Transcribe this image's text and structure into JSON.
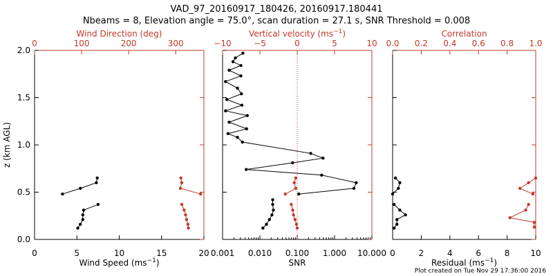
{
  "figure": {
    "title_line1": "VAD_97_20160917_180426, 20160917.180441",
    "title_line2": "Nbeams = 8, Elevation angle = 75.0°, scan duration = 27.1 s, SNR Threshold = 0.008",
    "footer": "Plot created on Tue Nov 29 17:36:00 2016",
    "colors": {
      "primary": "#000000",
      "secondary": "#c0392b"
    }
  },
  "chart_data": [
    {
      "type": "line",
      "name": "wind",
      "ylabel": "z (km AGL)",
      "ylim": [
        0,
        2.0
      ],
      "yticks": [
        0.0,
        0.5,
        1.0,
        1.5,
        2.0
      ],
      "ytick_labels": [
        "0.0",
        "0.5",
        "1.0",
        "1.5",
        "2.0"
      ],
      "bottom_axis": {
        "label": "Wind Speed (ms",
        "label_sup": "−1",
        "label_end": ")",
        "range": [
          0,
          20
        ],
        "ticks": [
          0,
          5,
          10,
          15,
          20
        ],
        "tick_labels": [
          "0",
          "5",
          "10",
          "15",
          "20"
        ]
      },
      "top_axis": {
        "label": "Wind Direction (deg)",
        "range": [
          0,
          360
        ],
        "ticks": [
          0,
          100,
          200,
          300
        ],
        "tick_labels": [
          "0",
          "100",
          "200",
          "300"
        ]
      },
      "series": [
        {
          "name": "Wind Speed",
          "axis": "bottom",
          "color": "#000000",
          "segments": [
            [
              [
                7.4,
                0.65
              ],
              [
                7.3,
                0.6
              ],
              [
                5.4,
                0.54
              ],
              [
                3.3,
                0.48
              ]
            ],
            [
              [
                7.5,
                0.37
              ],
              [
                5.8,
                0.31
              ],
              [
                5.7,
                0.26
              ],
              [
                5.7,
                0.21
              ],
              [
                5.4,
                0.16
              ],
              [
                5.1,
                0.12
              ]
            ]
          ]
        },
        {
          "name": "Wind Direction",
          "axis": "top",
          "color": "#c0392b",
          "segments": [
            [
              [
                311,
                0.65
              ],
              [
                313,
                0.6
              ],
              [
                310,
                0.54
              ],
              [
                353,
                0.48
              ]
            ],
            [
              [
                313,
                0.37
              ],
              [
                318,
                0.31
              ],
              [
                321,
                0.26
              ],
              [
                323,
                0.21
              ],
              [
                326,
                0.16
              ],
              [
                327,
                0.12
              ]
            ]
          ]
        }
      ]
    },
    {
      "type": "line",
      "name": "snr-vv",
      "ylim": [
        0,
        2.0
      ],
      "bottom_axis": {
        "label": "SNR",
        "scale": "log",
        "range": [
          0.001,
          10
        ],
        "ticks": [
          0.001,
          0.01,
          0.1,
          1,
          10
        ],
        "tick_labels": [
          "0.001",
          "0.010",
          "0.100",
          "1.000",
          "10.000"
        ]
      },
      "top_axis": {
        "label": "Vertical velocity (ms",
        "label_sup": "−1",
        "label_end": ")",
        "range": [
          -10,
          10
        ],
        "ticks": [
          -10,
          -5,
          0,
          5,
          10
        ],
        "tick_labels": [
          "−10",
          "−5",
          "0",
          "5",
          "10"
        ]
      },
      "reference_line": {
        "axis": "top",
        "value": 0,
        "style": "dotted"
      },
      "series": [
        {
          "name": "SNR",
          "axis": "bottom",
          "color": "#000000",
          "segments": [
            [
              [
                0.0035,
                1.97
              ],
              [
                0.0022,
                1.92
              ],
              [
                0.0019,
                1.88
              ],
              [
                0.0031,
                1.84
              ],
              [
                0.0015,
                1.79
              ],
              [
                0.0031,
                1.73
              ],
              [
                0.0012,
                1.67
              ],
              [
                0.0025,
                1.6
              ],
              [
                0.0032,
                1.54
              ],
              [
                0.0013,
                1.48
              ],
              [
                0.0033,
                1.42
              ],
              [
                0.0012,
                1.36
              ],
              [
                0.0046,
                1.31
              ],
              [
                0.0015,
                1.24
              ],
              [
                0.0044,
                1.17
              ],
              [
                0.0014,
                1.12
              ],
              [
                0.0025,
                1.08
              ],
              [
                0.0034,
                1.03
              ],
              [
                0.23,
                0.91
              ],
              [
                0.49,
                0.86
              ],
              [
                0.075,
                0.81
              ],
              [
                0.0043,
                0.74
              ],
              [
                0.45,
                0.68
              ],
              [
                3.8,
                0.6
              ],
              [
                3.3,
                0.54
              ],
              [
                0.11,
                0.48
              ]
            ],
            [
              [
                0.022,
                0.42
              ],
              [
                0.022,
                0.37
              ],
              [
                0.023,
                0.31
              ],
              [
                0.021,
                0.26
              ],
              [
                0.018,
                0.21
              ],
              [
                0.015,
                0.16
              ],
              [
                0.012,
                0.12
              ]
            ]
          ]
        },
        {
          "name": "Vertical velocity",
          "axis": "top",
          "color": "#c0392b",
          "segments": [
            [
              [
                -0.2,
                0.65
              ],
              [
                -0.4,
                0.6
              ],
              [
                -0.2,
                0.54
              ],
              [
                -1.6,
                0.48
              ]
            ],
            [
              [
                -0.8,
                0.37
              ],
              [
                -0.6,
                0.31
              ],
              [
                -0.5,
                0.26
              ],
              [
                -0.3,
                0.21
              ],
              [
                -0.1,
                0.16
              ],
              [
                0.0,
                0.12
              ]
            ]
          ]
        }
      ]
    },
    {
      "type": "line",
      "name": "residual-correlation",
      "ylim": [
        0,
        2.0
      ],
      "bottom_axis": {
        "label": "Residual (ms",
        "label_sup": "−1",
        "label_end": ")",
        "range": [
          0,
          10
        ],
        "ticks": [
          0,
          2,
          4,
          6,
          8,
          10
        ],
        "tick_labels": [
          "0",
          "2",
          "4",
          "6",
          "8",
          "10"
        ]
      },
      "top_axis": {
        "label": "Correlation",
        "range": [
          0,
          1.0
        ],
        "ticks": [
          0,
          0.2,
          0.4,
          0.6,
          0.8,
          1.0
        ],
        "tick_labels": [
          "0.0",
          "0.2",
          "0.4",
          "0.6",
          "0.8",
          "1.0"
        ]
      },
      "series": [
        {
          "name": "Residual",
          "axis": "bottom",
          "color": "#000000",
          "segments": [
            [
              [
                0.2,
                0.65
              ],
              [
                0.5,
                0.6
              ],
              [
                0.4,
                0.54
              ],
              [
                0.0,
                0.48
              ]
            ],
            [
              [
                0.1,
                0.37
              ],
              [
                0.5,
                0.31
              ],
              [
                0.9,
                0.26
              ],
              [
                0.3,
                0.21
              ],
              [
                0.3,
                0.16
              ],
              [
                0.1,
                0.12
              ]
            ]
          ]
        },
        {
          "name": "Correlation",
          "axis": "top",
          "color": "#c0392b",
          "segments": [
            [
              [
                1.0,
                0.65
              ],
              [
                0.95,
                0.6
              ],
              [
                0.89,
                0.54
              ],
              [
                0.98,
                0.48
              ]
            ],
            [
              [
                0.95,
                0.37
              ],
              [
                0.93,
                0.31
              ],
              [
                0.82,
                0.23
              ],
              [
                0.99,
                0.18
              ],
              [
                0.99,
                0.13
              ]
            ]
          ]
        }
      ]
    }
  ]
}
